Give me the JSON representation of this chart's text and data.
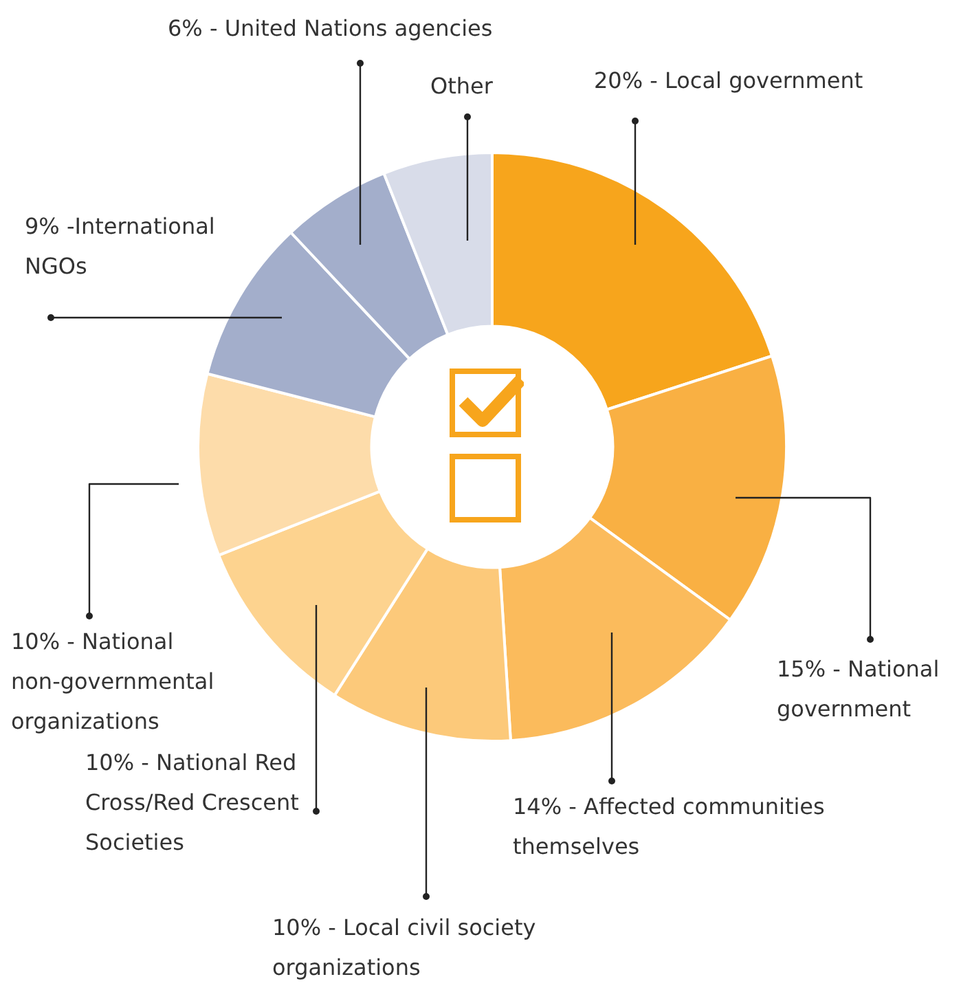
{
  "chart_data": {
    "type": "donut",
    "categories": [
      "20% - Local government",
      "15% - National government",
      "14% - Affected communities themselves",
      "10% - Local civil society organizations",
      "10% - National Red Cross/Red Crescent Societies",
      "10% - National non-governmental organizations",
      "9% -International NGOs",
      "6% - United Nations agencies",
      "Other"
    ],
    "values": [
      20,
      15,
      14,
      10,
      10,
      10,
      9,
      6,
      6
    ],
    "colors": [
      "#f7a51c",
      "#f9b043",
      "#fbbb5c",
      "#fcc97a",
      "#fdd38f",
      "#fddcaa",
      "#a3aecb",
      "#a3aecb",
      "#d8dce9"
    ],
    "legend": false
  }
}
